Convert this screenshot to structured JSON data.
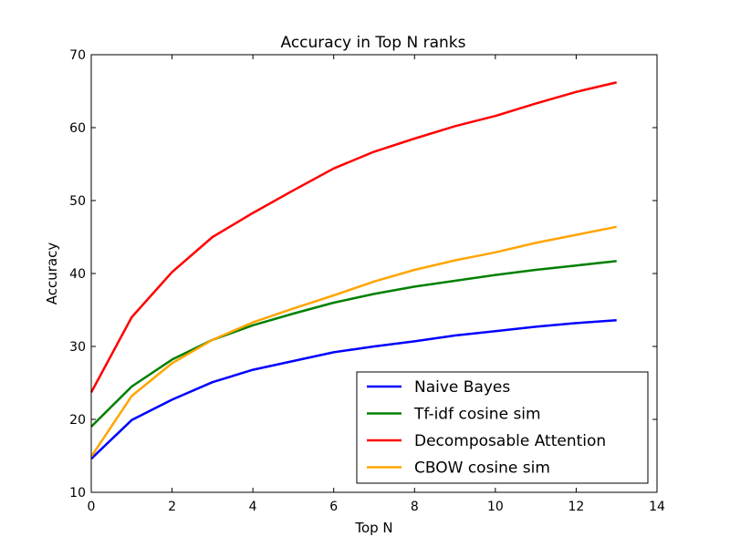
{
  "chart_data": {
    "type": "line",
    "title": "Accuracy in Top N ranks",
    "xlabel": "Top N",
    "ylabel": "Accuracy",
    "xlim": [
      0,
      14
    ],
    "ylim": [
      10,
      70
    ],
    "xticks": [
      0,
      2,
      4,
      6,
      8,
      10,
      12,
      14
    ],
    "yticks": [
      10,
      20,
      30,
      40,
      50,
      60,
      70
    ],
    "grid": false,
    "legend_position": "lower-right",
    "x": [
      0,
      1,
      2,
      3,
      4,
      5,
      6,
      7,
      8,
      9,
      10,
      11,
      12,
      13
    ],
    "series": [
      {
        "name": "Naive Bayes",
        "color": "#0000ff",
        "values": [
          14.6,
          19.9,
          22.7,
          25.1,
          26.8,
          28.0,
          29.2,
          30.0,
          30.7,
          31.5,
          32.1,
          32.7,
          33.2,
          33.6
        ]
      },
      {
        "name": "Tf-idf cosine sim",
        "color": "#008000",
        "values": [
          19.0,
          24.5,
          28.2,
          30.9,
          32.9,
          34.5,
          36.0,
          37.2,
          38.2,
          39.0,
          39.8,
          40.5,
          41.1,
          41.7
        ]
      },
      {
        "name": "Decomposable Attention",
        "color": "#ff0000",
        "values": [
          23.7,
          34.0,
          40.2,
          45.0,
          48.3,
          51.4,
          54.4,
          56.7,
          58.5,
          60.2,
          61.6,
          63.3,
          64.9,
          66.2
        ]
      },
      {
        "name": "CBOW cosine sim",
        "color": "#ffa500",
        "values": [
          14.9,
          23.2,
          27.7,
          30.9,
          33.3,
          35.2,
          37.0,
          38.9,
          40.5,
          41.8,
          42.9,
          44.2,
          45.3,
          46.4
        ]
      }
    ]
  }
}
